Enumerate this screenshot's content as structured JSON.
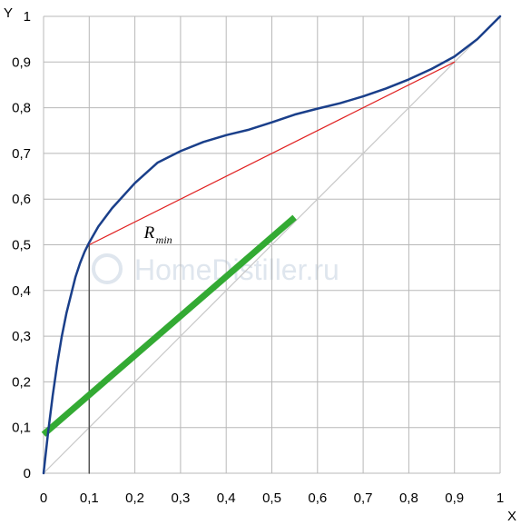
{
  "chart_data": {
    "type": "line",
    "xlabel": "X",
    "ylabel": "Y",
    "xlim": [
      0,
      1
    ],
    "ylim": [
      0,
      1
    ],
    "grid": true,
    "x_ticks": [
      "0",
      "0,1",
      "0,2",
      "0,3",
      "0,4",
      "0,5",
      "0,6",
      "0,7",
      "0,8",
      "0,9",
      "1"
    ],
    "y_ticks": [
      "0",
      "0,1",
      "0,2",
      "0,3",
      "0,4",
      "0,5",
      "0,6",
      "0,7",
      "0,8",
      "0,9",
      "1"
    ],
    "series": [
      {
        "color": "#1a3f8a",
        "points": [
          [
            0,
            0
          ],
          [
            0.01,
            0.09
          ],
          [
            0.02,
            0.17
          ],
          [
            0.03,
            0.24
          ],
          [
            0.04,
            0.3
          ],
          [
            0.05,
            0.35
          ],
          [
            0.06,
            0.39
          ],
          [
            0.07,
            0.43
          ],
          [
            0.08,
            0.46
          ],
          [
            0.09,
            0.485
          ],
          [
            0.1,
            0.505
          ],
          [
            0.12,
            0.54
          ],
          [
            0.15,
            0.58
          ],
          [
            0.2,
            0.635
          ],
          [
            0.25,
            0.68
          ],
          [
            0.3,
            0.705
          ],
          [
            0.35,
            0.725
          ],
          [
            0.4,
            0.74
          ],
          [
            0.45,
            0.752
          ],
          [
            0.5,
            0.768
          ],
          [
            0.55,
            0.785
          ],
          [
            0.6,
            0.798
          ],
          [
            0.65,
            0.81
          ],
          [
            0.7,
            0.825
          ],
          [
            0.75,
            0.842
          ],
          [
            0.8,
            0.862
          ],
          [
            0.85,
            0.885
          ],
          [
            0.9,
            0.912
          ],
          [
            0.95,
            0.95
          ],
          [
            1,
            1
          ]
        ]
      },
      {
        "color": "#c8c8c8",
        "points": [
          [
            0,
            0
          ],
          [
            1,
            1
          ]
        ]
      },
      {
        "color": "#e02020",
        "points": [
          [
            0.1,
            0.5
          ],
          [
            0.9,
            0.9
          ]
        ]
      },
      {
        "color": "#33aa33",
        "points": [
          [
            0,
            0.085
          ],
          [
            0.55,
            0.56
          ]
        ]
      },
      {
        "color": "#555555",
        "points": [
          [
            0.1,
            0
          ],
          [
            0.1,
            0.5
          ]
        ]
      }
    ],
    "annotations": [
      {
        "text": "R",
        "subscript": "min",
        "x": 0.22,
        "y": 0.515
      }
    ],
    "watermark": "HomeDistiller.ru"
  }
}
